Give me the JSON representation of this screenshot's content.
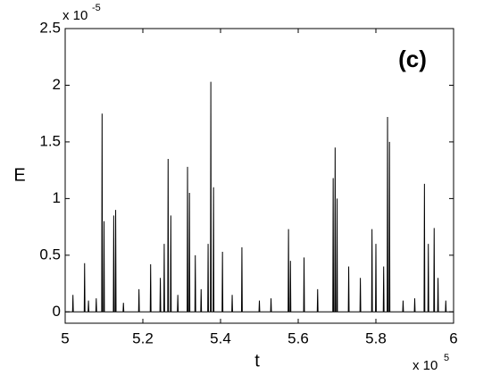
{
  "chart_data": {
    "type": "line",
    "xlabel": "t",
    "ylabel": "E",
    "annotation": "(c)",
    "x_multiplier": {
      "base": "x 10",
      "exponent": "5"
    },
    "y_multiplier": {
      "base": "x 10",
      "exponent": "-5"
    },
    "color": "#000000",
    "xlim": [
      5,
      6
    ],
    "ylim": [
      -0.1,
      2.5
    ],
    "xticks": [
      5,
      5.2,
      5.4,
      5.6,
      5.8,
      6
    ],
    "yticks": [
      0,
      0.5,
      1,
      1.5,
      2,
      2.5
    ],
    "grid": false,
    "x": [
      5,
      5.019,
      5.02,
      5.021,
      5.049,
      5.05,
      5.051,
      5.059,
      5.06,
      5.061,
      5.079,
      5.08,
      5.081,
      5.094,
      5.095,
      5.096,
      5.099,
      5.1,
      5.101,
      5.124,
      5.125,
      5.126,
      5.129,
      5.13,
      5.131,
      5.149,
      5.15,
      5.151,
      5.189,
      5.19,
      5.191,
      5.219,
      5.22,
      5.221,
      5.244,
      5.245,
      5.246,
      5.254,
      5.255,
      5.256,
      5.264,
      5.265,
      5.266,
      5.271,
      5.272,
      5.273,
      5.289,
      5.29,
      5.291,
      5.314,
      5.315,
      5.316,
      5.319,
      5.32,
      5.321,
      5.334,
      5.335,
      5.336,
      5.349,
      5.35,
      5.351,
      5.367,
      5.368,
      5.369,
      5.374,
      5.375,
      5.376,
      5.381,
      5.382,
      5.383,
      5.404,
      5.405,
      5.406,
      5.429,
      5.43,
      5.431,
      5.454,
      5.455,
      5.456,
      5.499,
      5.5,
      5.501,
      5.529,
      5.53,
      5.531,
      5.574,
      5.575,
      5.576,
      5.579,
      5.58,
      5.581,
      5.614,
      5.615,
      5.616,
      5.649,
      5.65,
      5.651,
      5.689,
      5.69,
      5.691,
      5.694,
      5.695,
      5.696,
      5.699,
      5.7,
      5.701,
      5.729,
      5.73,
      5.731,
      5.759,
      5.76,
      5.761,
      5.789,
      5.79,
      5.791,
      5.799,
      5.8,
      5.801,
      5.819,
      5.82,
      5.821,
      5.829,
      5.83,
      5.831,
      5.834,
      5.835,
      5.836,
      5.869,
      5.87,
      5.871,
      5.899,
      5.9,
      5.901,
      5.924,
      5.925,
      5.926,
      5.934,
      5.935,
      5.936,
      5.949,
      5.95,
      5.951,
      5.959,
      5.96,
      5.961,
      5.979,
      5.98,
      5.981,
      6
    ],
    "values": [
      0,
      0,
      0.15,
      0,
      0,
      0.43,
      0,
      0,
      0.1,
      0,
      0,
      0.12,
      0,
      0,
      1.75,
      0,
      0,
      0.8,
      0,
      0,
      0.85,
      0,
      0,
      0.9,
      0,
      0,
      0.08,
      0,
      0,
      0.2,
      0,
      0,
      0.42,
      0,
      0,
      0.3,
      0,
      0,
      0.6,
      0,
      0,
      1.35,
      0,
      0,
      0.85,
      0,
      0,
      0.15,
      0,
      0,
      1.28,
      0,
      0,
      1.05,
      0,
      0,
      0.5,
      0,
      0,
      0.2,
      0,
      0,
      0.6,
      0,
      0,
      2.03,
      0,
      0,
      1.1,
      0,
      0,
      0.53,
      0,
      0,
      0.15,
      0,
      0,
      0.57,
      0,
      0,
      0.1,
      0,
      0,
      0.12,
      0,
      0,
      0.73,
      0,
      0,
      0.45,
      0,
      0,
      0.48,
      0,
      0,
      0.2,
      0,
      0,
      1.18,
      0,
      0,
      1.45,
      0,
      0,
      1.0,
      0,
      0,
      0.4,
      0,
      0,
      0.3,
      0,
      0,
      0.73,
      0,
      0,
      0.6,
      0,
      0,
      0.4,
      0,
      0,
      1.72,
      0,
      0,
      1.5,
      0,
      0,
      0.1,
      0,
      0,
      0.12,
      0,
      0,
      1.13,
      0,
      0,
      0.6,
      0,
      0,
      0.74,
      0,
      0,
      0.3,
      0,
      0,
      0.1,
      0,
      0
    ]
  }
}
